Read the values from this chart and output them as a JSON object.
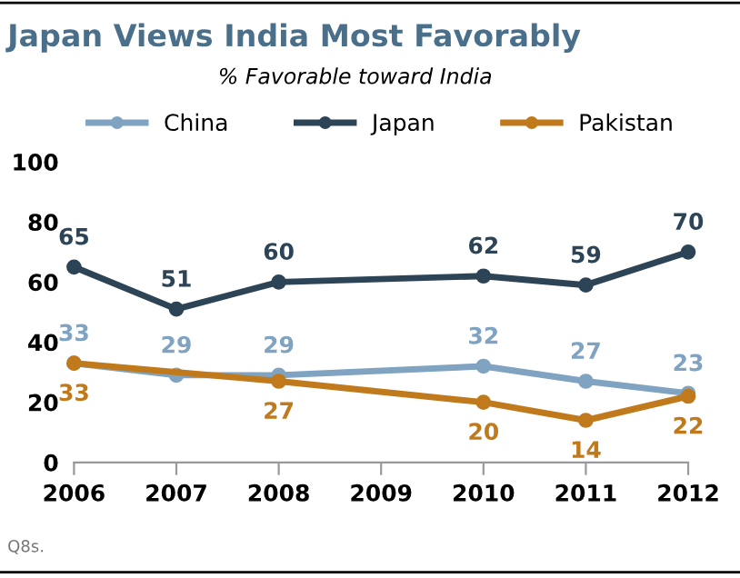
{
  "chart_data": {
    "type": "line",
    "title": "Japan Views India Most Favorably",
    "subtitle": "% Favorable toward India",
    "xlim": [
      2006,
      2012
    ],
    "xticks": [
      2006,
      2007,
      2008,
      2009,
      2010,
      2011,
      2012
    ],
    "ylim": [
      0,
      100
    ],
    "yticks": [
      0,
      20,
      40,
      60,
      80,
      100
    ],
    "series": [
      {
        "name": "China",
        "color": "#7fa3c0",
        "x": [
          2006,
          2007,
          2008,
          2010,
          2011,
          2012
        ],
        "values": [
          33,
          29,
          29,
          32,
          27,
          23
        ]
      },
      {
        "name": "Japan",
        "color": "#2c4456",
        "x": [
          2006,
          2007,
          2008,
          2010,
          2011,
          2012
        ],
        "values": [
          65,
          51,
          60,
          62,
          59,
          70
        ]
      },
      {
        "name": "Pakistan",
        "color": "#c07a1c",
        "x": [
          2006,
          2008,
          2010,
          2011,
          2012
        ],
        "values": [
          33,
          27,
          20,
          14,
          22
        ]
      }
    ],
    "marker": "circle",
    "line_style": "solid",
    "data_labels": true,
    "legend": "top",
    "grid": false,
    "annotations": [
      "Q8s."
    ]
  }
}
